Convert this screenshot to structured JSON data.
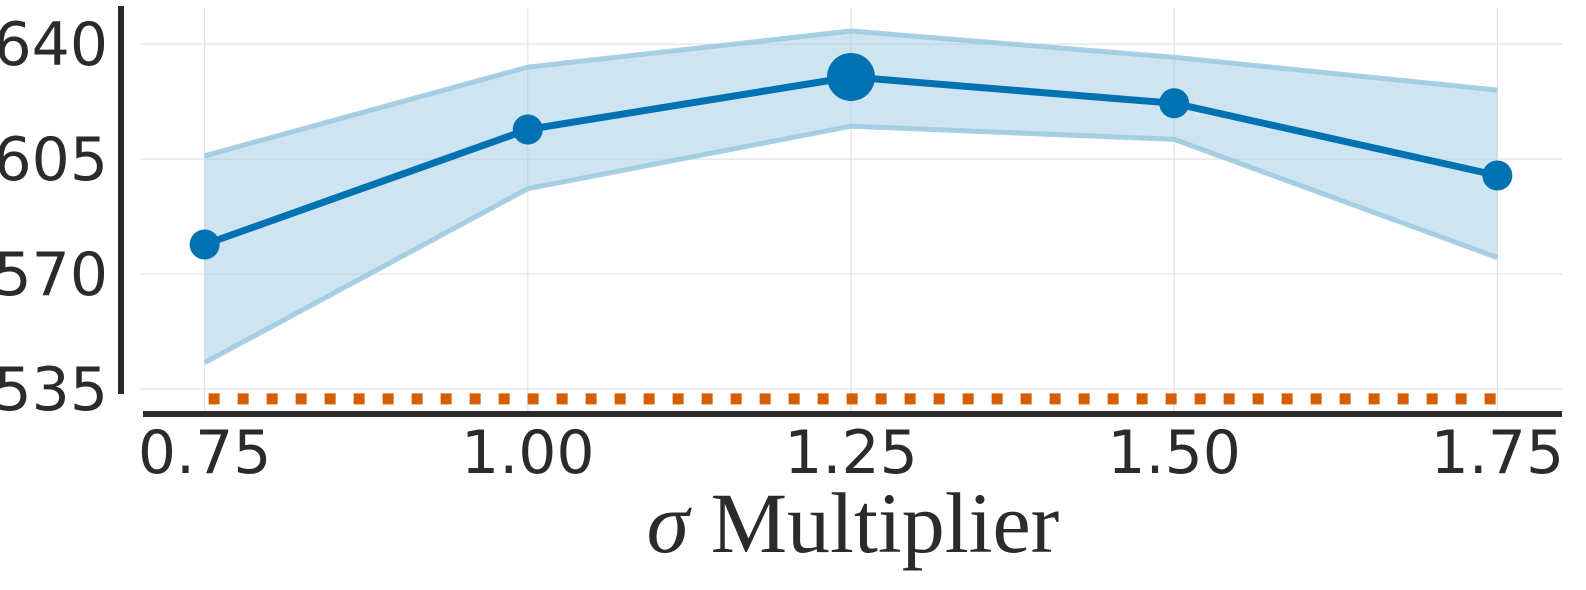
{
  "chart_data": {
    "type": "line",
    "title": "",
    "xlabel_symbol": "σ",
    "xlabel_text": "Multiplier",
    "ylabel": "",
    "x": [
      0.75,
      1.0,
      1.25,
      1.5,
      1.75
    ],
    "x_tick_labels": [
      "0.75",
      "1.00",
      "1.25",
      "1.50",
      "1.75"
    ],
    "xlim": [
      0.7,
      1.8
    ],
    "y_ticks": [
      535,
      570,
      605,
      640
    ],
    "y_tick_labels": [
      "535",
      "570",
      "605",
      "640"
    ],
    "ylim": [
      528,
      651
    ],
    "grid": true,
    "series": [
      {
        "values": [
          579,
          614,
          630,
          622,
          600
        ],
        "lower": [
          543,
          596,
          615,
          611,
          575
        ],
        "upper": [
          606,
          633,
          644,
          636,
          626
        ],
        "highlight_index": 2,
        "color": "#0072b2",
        "band_color": "#9ecae1"
      },
      {
        "values": [
          532,
          532,
          532,
          532,
          532
        ],
        "style": "dotted",
        "color": "#d55e00"
      }
    ]
  }
}
